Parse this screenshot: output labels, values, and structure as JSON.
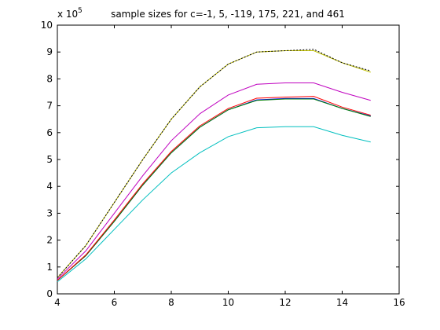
{
  "chart_data": {
    "type": "line",
    "title": "sample sizes for c=-1, 5, -119, 175, 221, and 461",
    "exponent_label": "x 10",
    "exponent_power": "5",
    "xlabel": "",
    "ylabel": "",
    "xlim": [
      4,
      16
    ],
    "ylim": [
      0,
      10
    ],
    "xticks": [
      4,
      6,
      8,
      10,
      12,
      14,
      16
    ],
    "yticks": [
      0,
      1,
      2,
      3,
      4,
      5,
      6,
      7,
      8,
      9,
      10
    ],
    "grid": false,
    "x": [
      4,
      5,
      6,
      7,
      8,
      9,
      10,
      11,
      12,
      13,
      14,
      15
    ],
    "series": [
      {
        "color": "#000000",
        "dash": "2,2",
        "values": [
          0.6,
          1.8,
          3.4,
          5.0,
          6.5,
          7.7,
          8.55,
          9.0,
          9.05,
          9.1,
          8.6,
          8.3
        ]
      },
      {
        "color": "#bfbf00",
        "values": [
          0.6,
          1.8,
          3.4,
          5.0,
          6.5,
          7.7,
          8.55,
          9.0,
          9.05,
          9.05,
          8.6,
          8.25
        ]
      },
      {
        "color": "#bf00bf",
        "values": [
          0.55,
          1.6,
          3.0,
          4.4,
          5.7,
          6.7,
          7.4,
          7.8,
          7.85,
          7.85,
          7.5,
          7.2
        ]
      },
      {
        "color": "#ff0000",
        "values": [
          0.5,
          1.45,
          2.75,
          4.1,
          5.3,
          6.25,
          6.9,
          7.28,
          7.32,
          7.35,
          6.95,
          6.65
        ]
      },
      {
        "color": "#008000",
        "values": [
          0.5,
          1.42,
          2.7,
          4.05,
          5.25,
          6.2,
          6.85,
          7.2,
          7.25,
          7.25,
          6.9,
          6.6
        ]
      },
      {
        "color": "#0000ff",
        "values": [
          0.5,
          1.42,
          2.7,
          4.05,
          5.25,
          6.2,
          6.85,
          7.22,
          7.27,
          7.27,
          6.9,
          6.62
        ]
      },
      {
        "color": "#00bfbf",
        "values": [
          0.45,
          1.3,
          2.4,
          3.5,
          4.5,
          5.25,
          5.85,
          6.18,
          6.22,
          6.22,
          5.9,
          5.65
        ]
      }
    ]
  }
}
